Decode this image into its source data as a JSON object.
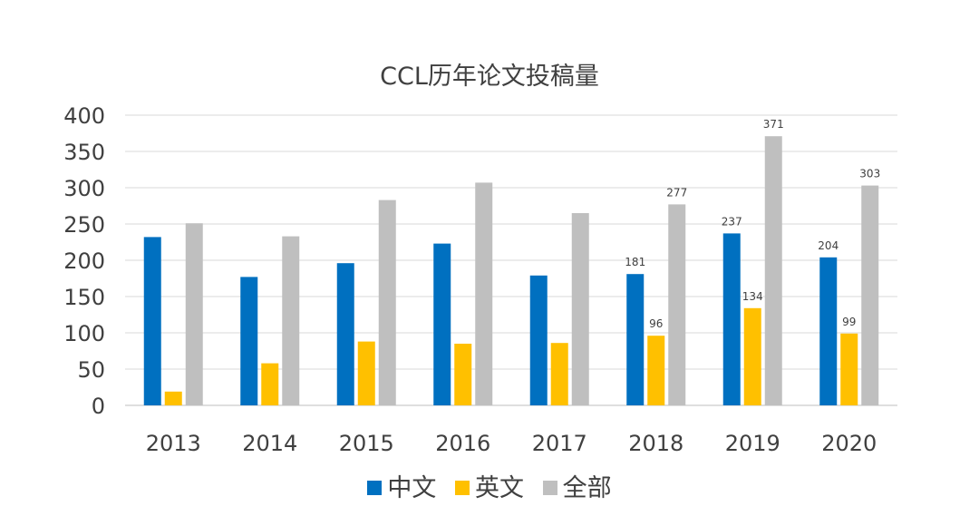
{
  "chart_data": {
    "type": "bar",
    "title": "CCL历年论文投稿量",
    "xlabel": "",
    "ylabel": "",
    "ylim": [
      0,
      400
    ],
    "yticks": [
      0,
      50,
      100,
      150,
      200,
      250,
      300,
      350,
      400
    ],
    "grid": true,
    "legend_position": "bottom",
    "categories": [
      "2013",
      "2014",
      "2015",
      "2016",
      "2017",
      "2018",
      "2019",
      "2020"
    ],
    "series": [
      {
        "name": "中文",
        "color": "#0070C0",
        "values": [
          232,
          177,
          196,
          223,
          179,
          181,
          237,
          204
        ],
        "labels": [
          null,
          null,
          null,
          null,
          null,
          "181",
          "237",
          "204"
        ]
      },
      {
        "name": "英文",
        "color": "#FFC000",
        "values": [
          19,
          58,
          88,
          85,
          86,
          96,
          134,
          99
        ],
        "labels": [
          null,
          null,
          null,
          null,
          null,
          "96",
          "134",
          "99"
        ]
      },
      {
        "name": "全部",
        "color": "#BFBFBF",
        "values": [
          251,
          233,
          283,
          307,
          265,
          277,
          371,
          303
        ],
        "labels": [
          null,
          null,
          null,
          null,
          null,
          "277",
          "371",
          "303"
        ]
      }
    ]
  }
}
